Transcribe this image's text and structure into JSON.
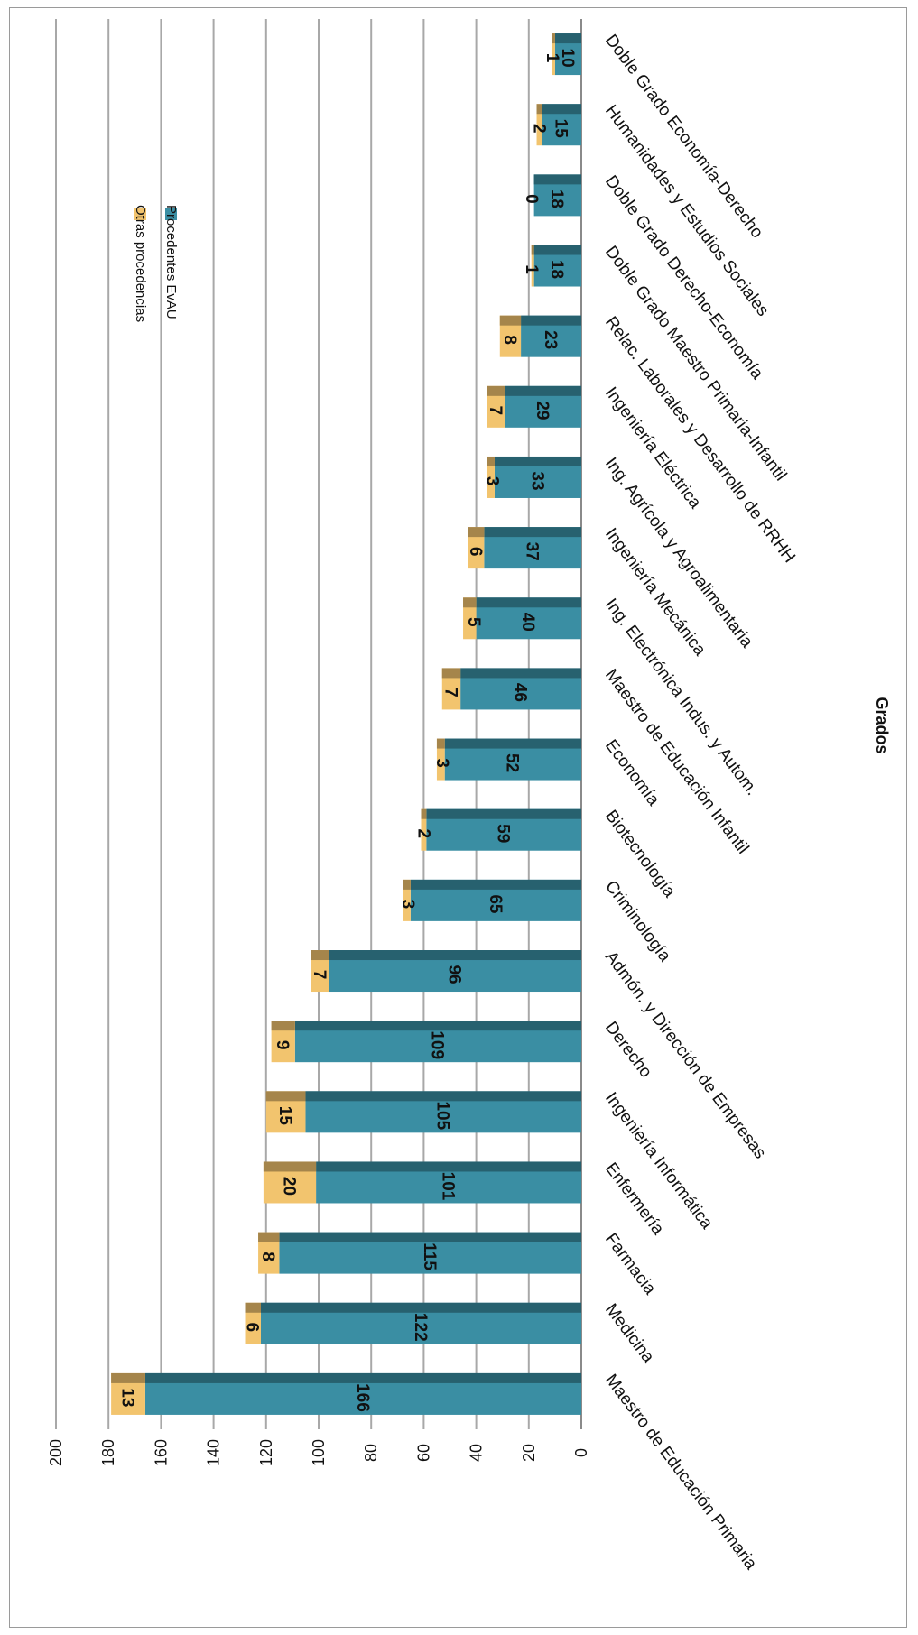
{
  "chart_data": {
    "type": "bar",
    "stacked": true,
    "orientation": "rotated-90-clockwise",
    "xlabel": "Grados",
    "ylabel": "",
    "ylim": [
      0,
      200
    ],
    "yticks": [
      0,
      20,
      40,
      60,
      80,
      100,
      120,
      140,
      160,
      180,
      200
    ],
    "grid": true,
    "legend_position": "inside-upper-right (rotated)",
    "categories": [
      "Maestro de Educación Primaria",
      "Medicina",
      "Farmacia",
      "Enfermería",
      "Ingeniería Informática",
      "Derecho",
      "Admón. y Dirección de Empresas",
      "Criminología",
      "Biotecnología",
      "Economía",
      "Maestro de Educación Infantil",
      "Ing. Electrónica Indus. y Autom.",
      "Ingeniería Mecánica",
      "Ing. Agrícola y Agroalimentaria",
      "Ingeniería Eléctrica",
      "Relac. Laborales y Desarrollo de RRHH",
      "Doble Grado Maestro Primaria-Infantil",
      "Doble Grado Derecho-Economía",
      "Humanidades y Estudios Sociales",
      "Doble Grado Economía-Derecho"
    ],
    "series": [
      {
        "name": "Procedentes EvAU",
        "color": "#3a8ea3",
        "values": [
          166,
          122,
          115,
          101,
          105,
          109,
          96,
          65,
          59,
          52,
          46,
          40,
          37,
          33,
          29,
          23,
          18,
          18,
          15,
          10
        ]
      },
      {
        "name": "Otras procedencias",
        "color": "#f2c46e",
        "values": [
          13,
          6,
          8,
          20,
          15,
          9,
          7,
          3,
          2,
          3,
          7,
          5,
          6,
          3,
          7,
          8,
          1,
          0,
          2,
          1
        ]
      }
    ],
    "legend": [
      {
        "label": "Otras procedencias",
        "color": "#f2c46e"
      },
      {
        "label": "Procedentes EvAU",
        "color": "#3a8ea3"
      }
    ]
  }
}
